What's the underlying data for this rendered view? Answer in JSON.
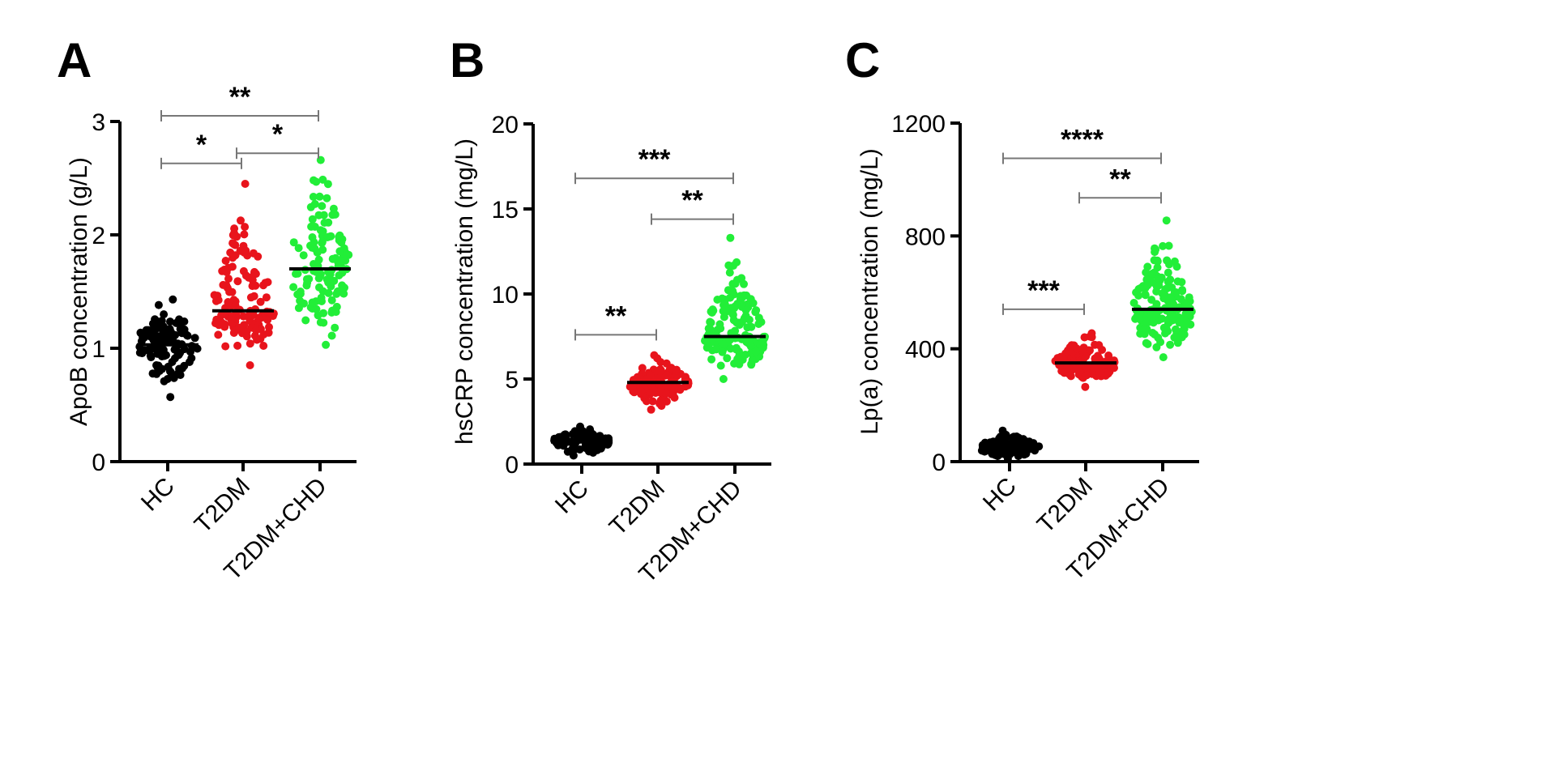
{
  "colors": {
    "HC": "#000000",
    "T2DM": "#e8141c",
    "T2DM+CHD": "#22ee38",
    "bracket": "#777777"
  },
  "chart_data": [
    {
      "type": "scatter",
      "panel_label": "A",
      "categories": [
        "HC",
        "T2DM",
        "T2DM+CHD"
      ],
      "ylabel": "ApoB concentration (g/L)",
      "ylim": [
        0,
        3
      ],
      "yticks": [
        "0",
        "1",
        "2",
        "3"
      ],
      "series": [
        {
          "name": "HC",
          "median": 1.03,
          "min": 0.57,
          "max": 1.43,
          "n": 110
        },
        {
          "name": "T2DM",
          "median": 1.33,
          "min": 0.85,
          "max": 2.45,
          "n": 130
        },
        {
          "name": "T2DM+CHD",
          "median": 1.7,
          "min": 1.03,
          "max": 2.66,
          "n": 120
        }
      ],
      "comparisons": [
        {
          "groups": [
            "HC",
            "T2DM"
          ],
          "label": "*",
          "y": 2.63
        },
        {
          "groups": [
            "T2DM",
            "T2DM+CHD"
          ],
          "label": "*",
          "y": 2.72
        },
        {
          "groups": [
            "HC",
            "T2DM+CHD"
          ],
          "label": "**",
          "y": 3.05
        }
      ]
    },
    {
      "type": "scatter",
      "panel_label": "B",
      "categories": [
        "HC",
        "T2DM",
        "T2DM+CHD"
      ],
      "ylabel": "hsCRP concentration (mg/L)",
      "ylim": [
        0,
        20
      ],
      "yticks": [
        "0",
        "5",
        "10",
        "15",
        "20"
      ],
      "series": [
        {
          "name": "HC",
          "median": 1.3,
          "min": 0.5,
          "max": 2.2,
          "n": 110
        },
        {
          "name": "T2DM",
          "median": 4.8,
          "min": 3.2,
          "max": 6.4,
          "n": 130
        },
        {
          "name": "T2DM+CHD",
          "median": 7.5,
          "min": 5.0,
          "max": 13.3,
          "n": 150
        }
      ],
      "comparisons": [
        {
          "groups": [
            "HC",
            "T2DM"
          ],
          "label": "**",
          "y": 7.6
        },
        {
          "groups": [
            "T2DM",
            "T2DM+CHD"
          ],
          "label": "**",
          "y": 14.4
        },
        {
          "groups": [
            "HC",
            "T2DM+CHD"
          ],
          "label": "***",
          "y": 16.8
        }
      ]
    },
    {
      "type": "scatter",
      "panel_label": "C",
      "categories": [
        "HC",
        "T2DM",
        "T2DM+CHD"
      ],
      "ylabel": "Lp(a) concentration (mg/L)",
      "ylim": [
        0,
        1200
      ],
      "yticks": [
        "0",
        "400",
        "800",
        "1200"
      ],
      "series": [
        {
          "name": "HC",
          "median": 50,
          "min": 10,
          "max": 110,
          "n": 110
        },
        {
          "name": "T2DM",
          "median": 350,
          "min": 265,
          "max": 455,
          "n": 140
        },
        {
          "name": "T2DM+CHD",
          "median": 540,
          "min": 370,
          "max": 855,
          "n": 160
        }
      ],
      "comparisons": [
        {
          "groups": [
            "HC",
            "T2DM"
          ],
          "label": "***",
          "y": 540
        },
        {
          "groups": [
            "T2DM",
            "T2DM+CHD"
          ],
          "label": "**",
          "y": 935
        },
        {
          "groups": [
            "HC",
            "T2DM+CHD"
          ],
          "label": "****",
          "y": 1075
        }
      ]
    }
  ]
}
